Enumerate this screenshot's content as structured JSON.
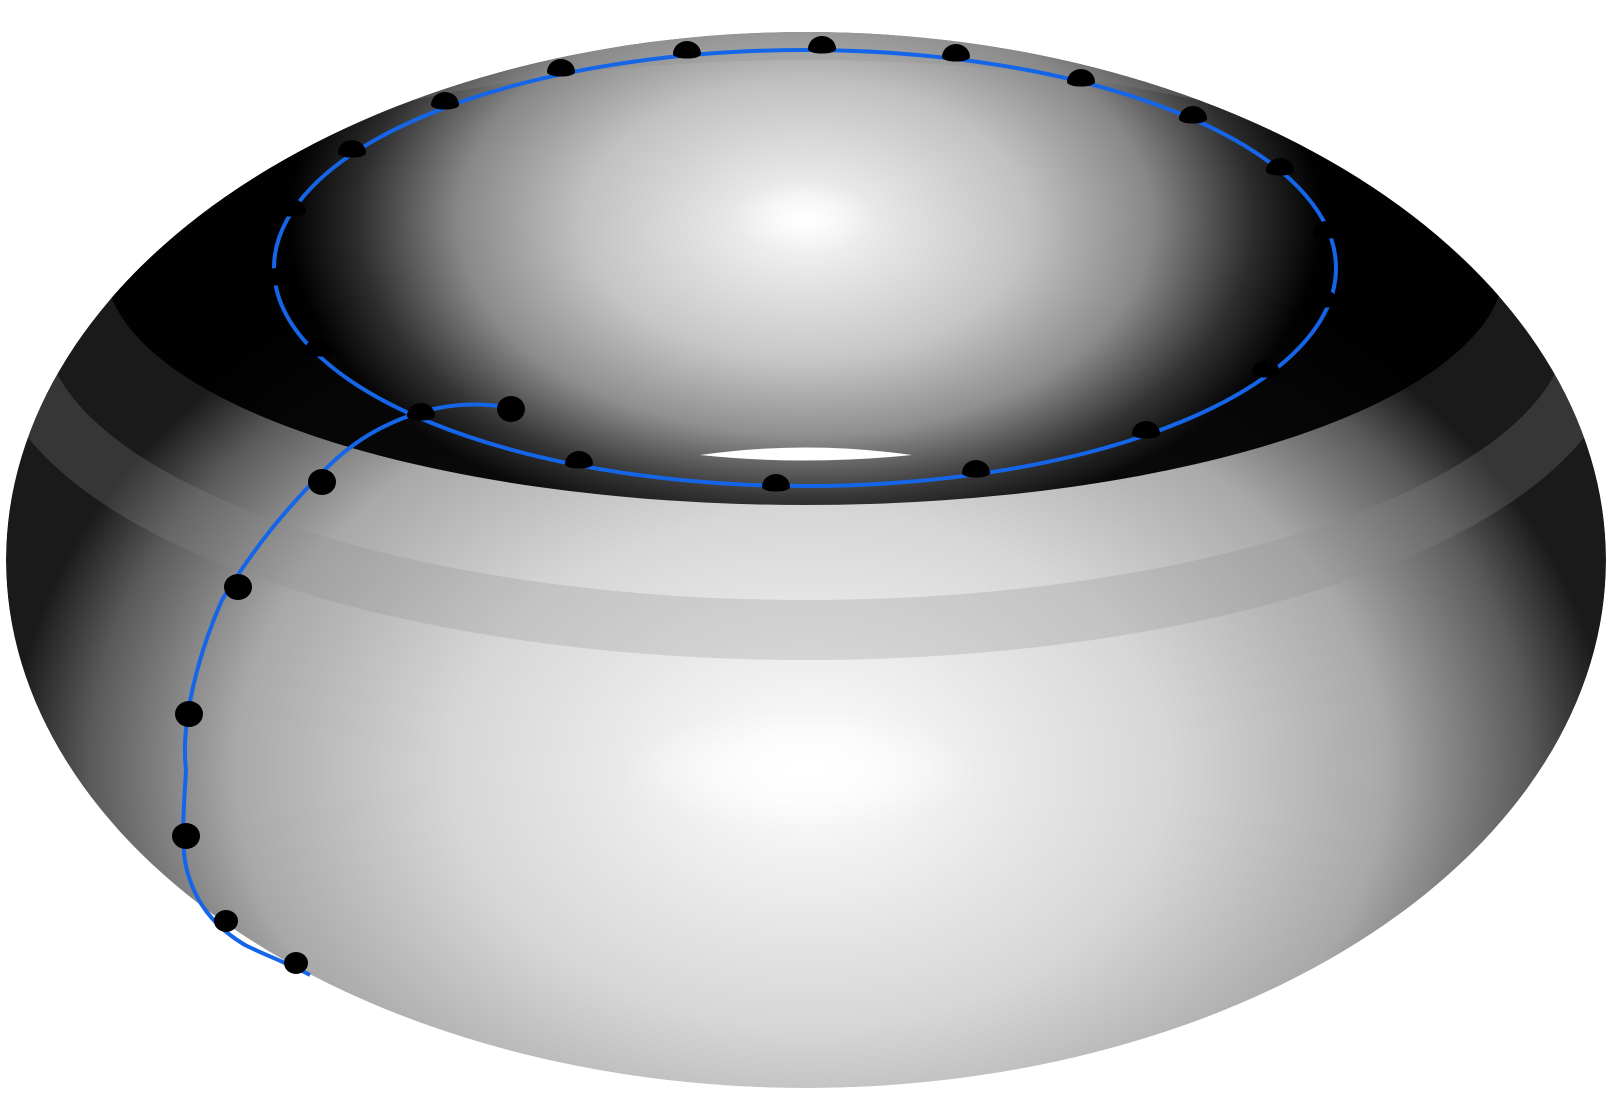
{
  "figure": {
    "subject": "torus-with-curves",
    "colors": {
      "background": "#ffffff",
      "curve": "#1565e8",
      "marker": "#000000",
      "shade_light": "#ffffff",
      "shade_mid": "#bdbdbd",
      "shade_dark": "#000000"
    },
    "curves": [
      {
        "name": "outer-loop-curve",
        "kind": "closed-longitudinal-circle",
        "marker_count": 24
      },
      {
        "name": "meridian-curve",
        "kind": "partial-meridian-circle",
        "marker_count": 8
      }
    ]
  }
}
